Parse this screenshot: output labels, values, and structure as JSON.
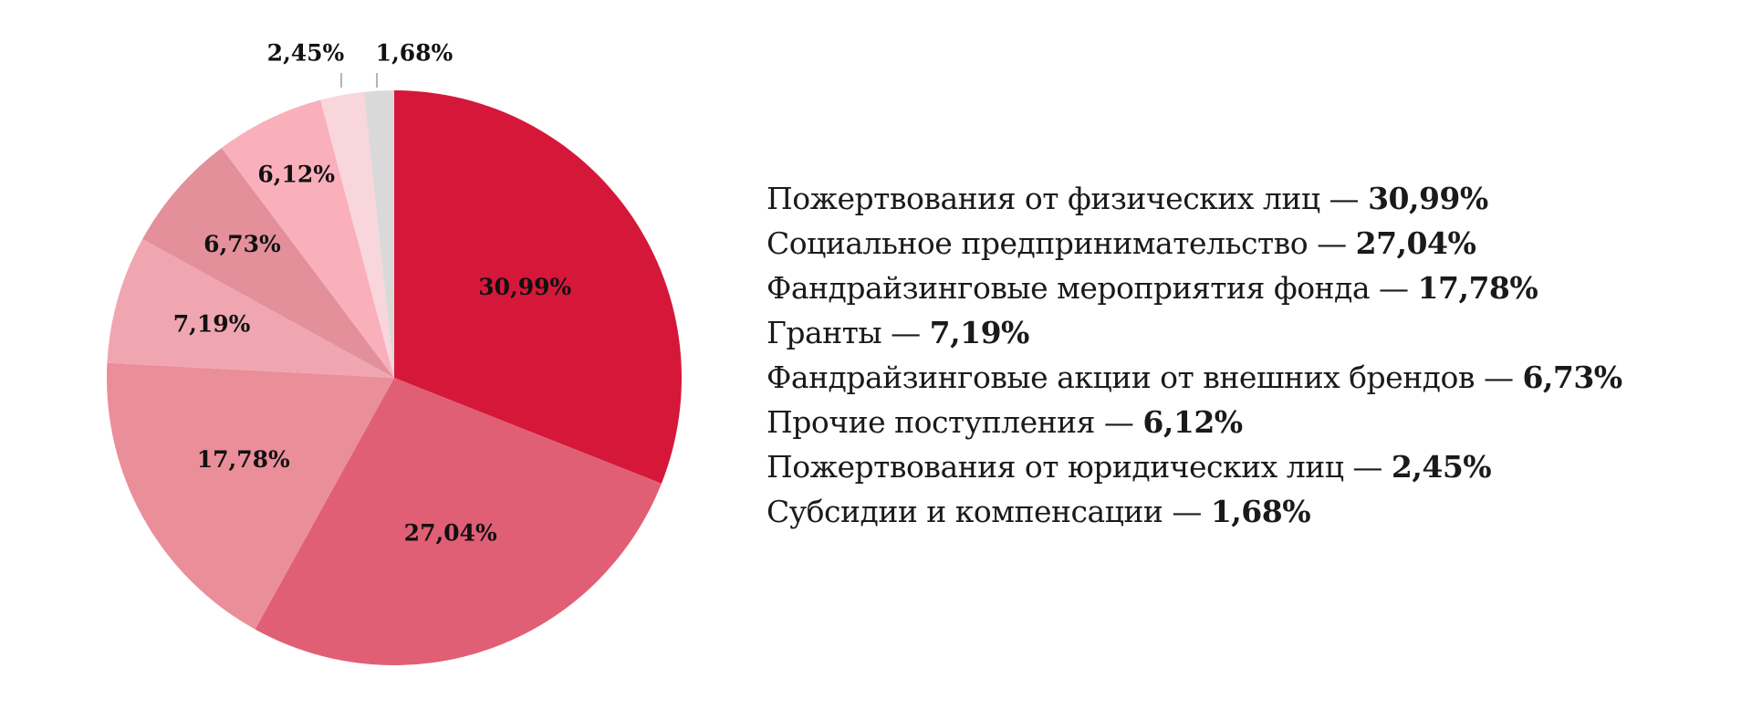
{
  "chart_data": {
    "type": "pie",
    "start": "top, clockwise",
    "categories": [
      "Пожертвования от физических лиц",
      "Социальное предпринимательство",
      "Фандрайзинговые мероприятия фонда",
      "Гранты",
      "Фандрайзинговые акции от внешних брендов",
      "Прочие поступления",
      "Пожертвования от юридических лиц",
      "Субсидии и компенсации"
    ],
    "values": [
      30.99,
      27.04,
      17.78,
      7.19,
      6.73,
      6.12,
      2.45,
      1.68
    ],
    "labels": [
      "30,99%",
      "27,04%",
      "17,78%",
      "7,19%",
      "6,73%",
      "6,12%",
      "2,45%",
      "1,68%"
    ],
    "colors": [
      "#d5183a",
      "#e15f75",
      "#ea8e9a",
      "#f0a6b0",
      "#e3909b",
      "#f9b0bb",
      "#f9d5dc",
      "#d9d9d9"
    ],
    "legend": {
      "placement": "right",
      "items": [
        {
          "text": "Пожертвования от физических лиц — ",
          "value": "30,99%"
        },
        {
          "text": "Социальное предпринимательство — ",
          "value": "27,04%"
        },
        {
          "text": "Фандрайзинговые мероприятия фонда — ",
          "value": "17,78%"
        },
        {
          "text": "Гранты — ",
          "value": "7,19%"
        },
        {
          "text": "Фандрайзинговые акции от внешних брендов — ",
          "value": "6,73%"
        },
        {
          "text": "Прочие поступления — ",
          "value": "6,12%"
        },
        {
          "text": "Пожертвования от юридических лиц — ",
          "value": "2,45%"
        },
        {
          "text": "Субсидии и компенсации — ",
          "value": "1,68%"
        }
      ]
    }
  }
}
